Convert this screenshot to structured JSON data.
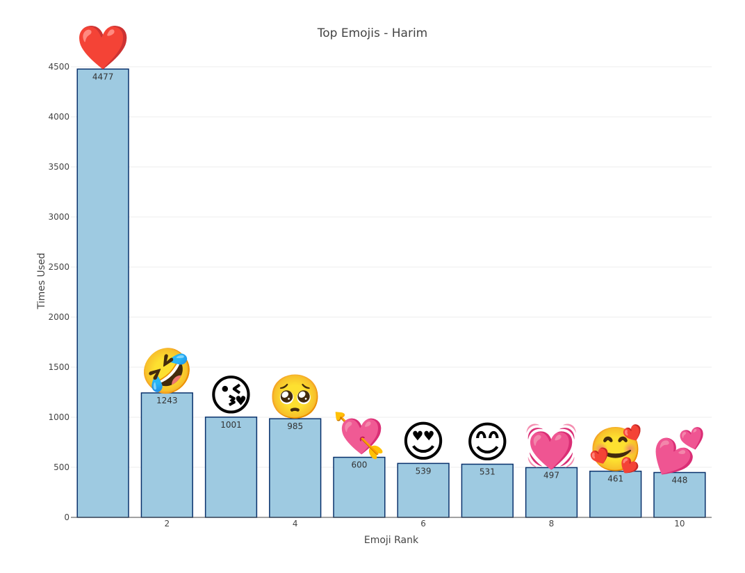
{
  "chart_data": {
    "type": "bar",
    "title": "Top Emojis - Harim",
    "xlabel": "Emoji Rank",
    "ylabel": "Times Used",
    "x": [
      1,
      2,
      3,
      4,
      5,
      6,
      7,
      8,
      9,
      10
    ],
    "values": [
      4477,
      1243,
      1001,
      985,
      600,
      539,
      531,
      497,
      461,
      448
    ],
    "emojis": [
      "❤️",
      "🤣",
      "😘",
      "🥺",
      "💘",
      "😍",
      "😊",
      "💓",
      "🥰",
      "💕"
    ],
    "xticks": [
      2,
      4,
      6,
      8,
      10
    ],
    "yticks": [
      0,
      500,
      1000,
      1500,
      2000,
      2500,
      3000,
      3500,
      4000,
      4500
    ],
    "ylim": [
      0,
      4500
    ],
    "xlim": [
      0.5,
      10.5
    ],
    "grid": true,
    "colors": {
      "bar_fill": "#9ecae1",
      "bar_outline": "#08306b"
    }
  }
}
